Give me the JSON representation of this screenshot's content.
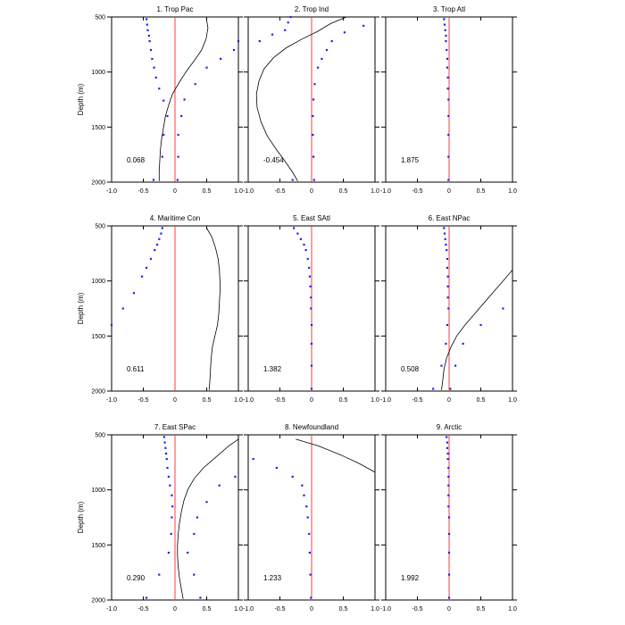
{
  "chart_data": {
    "type": "scatter",
    "ylabel": "Depth (m)",
    "x_ticks": [
      "-1.0",
      "-0.5",
      "0",
      "0.5",
      "1.0"
    ],
    "y_ticks": [
      "500",
      "1000",
      "1500",
      "2000"
    ],
    "xlim": [
      -1,
      1
    ],
    "ylim": [
      2000,
      500
    ],
    "y_axis_inverted": true,
    "reference_line": {
      "x": 0,
      "color": "#ff3b3b"
    },
    "colors": {
      "points": "#2222ee",
      "curve": "#000000",
      "axes": "#000000"
    },
    "panels": [
      {
        "title": "1. Trop Pac",
        "stat": "0.068",
        "points": [
          [
            -0.45,
            520
          ],
          [
            -0.44,
            570
          ],
          [
            -0.43,
            620
          ],
          [
            -0.41,
            670
          ],
          [
            -0.4,
            720
          ],
          [
            -0.38,
            800
          ],
          [
            -0.36,
            880
          ],
          [
            -0.33,
            960
          ],
          [
            -0.3,
            1050
          ],
          [
            -0.25,
            1150
          ],
          [
            -0.18,
            1260
          ],
          [
            -0.12,
            1400
          ],
          [
            -0.18,
            1570
          ],
          [
            -0.2,
            1770
          ],
          [
            -0.34,
            1980
          ],
          [
            1.0,
            720
          ],
          [
            0.93,
            800
          ],
          [
            0.72,
            880
          ],
          [
            0.5,
            960
          ],
          [
            0.32,
            1110
          ],
          [
            0.15,
            1250
          ],
          [
            0.1,
            1400
          ],
          [
            0.05,
            1570
          ],
          [
            0.05,
            1770
          ],
          [
            0.04,
            1980
          ]
        ],
        "curve": [
          [
            0.5,
            530
          ],
          [
            0.52,
            600
          ],
          [
            0.49,
            700
          ],
          [
            0.42,
            800
          ],
          [
            0.3,
            900
          ],
          [
            0.17,
            1000
          ],
          [
            0.06,
            1100
          ],
          [
            -0.04,
            1200
          ],
          [
            -0.1,
            1300
          ],
          [
            -0.15,
            1400
          ],
          [
            -0.18,
            1500
          ],
          [
            -0.21,
            1600
          ],
          [
            -0.23,
            1700
          ],
          [
            -0.24,
            1800
          ],
          [
            -0.25,
            1900
          ],
          [
            -0.25,
            1990
          ]
        ]
      },
      {
        "title": "2. Trop Ind",
        "stat": "-0.454",
        "points": [
          [
            -0.42,
            620
          ],
          [
            -0.37,
            550
          ],
          [
            -0.33,
            500
          ],
          [
            -0.62,
            660
          ],
          [
            -0.82,
            720
          ],
          [
            0.82,
            580
          ],
          [
            0.52,
            640
          ],
          [
            0.32,
            720
          ],
          [
            0.24,
            800
          ],
          [
            0.16,
            880
          ],
          [
            0.1,
            960
          ],
          [
            0.05,
            1110
          ],
          [
            0.03,
            1250
          ],
          [
            0.02,
            1400
          ],
          [
            0.02,
            1570
          ],
          [
            0.03,
            1770
          ],
          [
            0.04,
            1980
          ],
          [
            -0.3,
            1980
          ]
        ],
        "curve": [
          [
            0.55,
            500
          ],
          [
            0.3,
            560
          ],
          [
            0.1,
            630
          ],
          [
            -0.15,
            700
          ],
          [
            -0.4,
            780
          ],
          [
            -0.6,
            870
          ],
          [
            -0.75,
            970
          ],
          [
            -0.83,
            1080
          ],
          [
            -0.87,
            1200
          ],
          [
            -0.86,
            1320
          ],
          [
            -0.8,
            1450
          ],
          [
            -0.7,
            1580
          ],
          [
            -0.56,
            1700
          ],
          [
            -0.42,
            1810
          ],
          [
            -0.3,
            1910
          ],
          [
            -0.22,
            1990
          ]
        ]
      },
      {
        "title": "3. Trop Atl",
        "stat": "1.875",
        "points": [
          [
            -0.08,
            520
          ],
          [
            -0.07,
            570
          ],
          [
            -0.06,
            620
          ],
          [
            -0.05,
            670
          ],
          [
            -0.05,
            720
          ],
          [
            -0.04,
            800
          ],
          [
            -0.03,
            880
          ],
          [
            -0.03,
            960
          ],
          [
            -0.02,
            1050
          ],
          [
            -0.02,
            1150
          ],
          [
            -0.01,
            1250
          ],
          [
            -0.01,
            1400
          ],
          [
            -0.01,
            1570
          ],
          [
            -0.01,
            1770
          ],
          [
            -0.01,
            1980
          ]
        ],
        "curve": []
      },
      {
        "title": "4. Maritime Con",
        "stat": "0.611",
        "points": [
          [
            -0.2,
            520
          ],
          [
            -0.22,
            570
          ],
          [
            -0.25,
            620
          ],
          [
            -0.28,
            670
          ],
          [
            -0.32,
            720
          ],
          [
            -0.38,
            800
          ],
          [
            -0.45,
            880
          ],
          [
            -0.52,
            960
          ],
          [
            -0.65,
            1110
          ],
          [
            -0.82,
            1250
          ],
          [
            -1.0,
            1400
          ]
        ],
        "curve": [
          [
            0.5,
            520
          ],
          [
            0.58,
            600
          ],
          [
            0.64,
            700
          ],
          [
            0.68,
            800
          ],
          [
            0.7,
            900
          ],
          [
            0.71,
            1000
          ],
          [
            0.71,
            1100
          ],
          [
            0.7,
            1200
          ],
          [
            0.69,
            1300
          ],
          [
            0.67,
            1400
          ],
          [
            0.63,
            1500
          ],
          [
            0.59,
            1600
          ],
          [
            0.57,
            1700
          ],
          [
            0.56,
            1800
          ],
          [
            0.55,
            1900
          ],
          [
            0.54,
            1990
          ]
        ]
      },
      {
        "title": "5. East SAtl",
        "stat": "1.382",
        "points": [
          [
            -0.28,
            520
          ],
          [
            -0.22,
            570
          ],
          [
            -0.17,
            620
          ],
          [
            -0.12,
            670
          ],
          [
            -0.09,
            720
          ],
          [
            -0.06,
            800
          ],
          [
            -0.04,
            880
          ],
          [
            -0.03,
            960
          ],
          [
            -0.02,
            1050
          ],
          [
            -0.01,
            1150
          ],
          [
            -0.01,
            1250
          ],
          [
            0.0,
            1400
          ],
          [
            0.0,
            1570
          ],
          [
            0.0,
            1770
          ],
          [
            0.0,
            1980
          ]
        ],
        "curve": []
      },
      {
        "title": "6. East NPac",
        "stat": "0.508",
        "points": [
          [
            -0.08,
            520
          ],
          [
            -0.07,
            570
          ],
          [
            -0.06,
            620
          ],
          [
            -0.05,
            670
          ],
          [
            -0.04,
            720
          ],
          [
            -0.03,
            800
          ],
          [
            -0.03,
            880
          ],
          [
            -0.02,
            960
          ],
          [
            -0.02,
            1050
          ],
          [
            -0.02,
            1150
          ],
          [
            -0.01,
            1250
          ],
          [
            -0.03,
            1400
          ],
          [
            -0.05,
            1570
          ],
          [
            -0.12,
            1770
          ],
          [
            -0.25,
            1980
          ],
          [
            0.85,
            1250
          ],
          [
            0.5,
            1400
          ],
          [
            0.22,
            1570
          ],
          [
            0.1,
            1770
          ],
          [
            0.02,
            1980
          ]
        ],
        "curve": [
          [
            1.0,
            900
          ],
          [
            0.85,
            1000
          ],
          [
            0.7,
            1100
          ],
          [
            0.55,
            1200
          ],
          [
            0.4,
            1300
          ],
          [
            0.25,
            1400
          ],
          [
            0.12,
            1500
          ],
          [
            0.03,
            1600
          ],
          [
            -0.04,
            1700
          ],
          [
            -0.08,
            1800
          ],
          [
            -0.1,
            1900
          ],
          [
            -0.12,
            1990
          ]
        ]
      },
      {
        "title": "7. East SPac",
        "stat": "0.290",
        "points": [
          [
            -0.17,
            520
          ],
          [
            -0.16,
            570
          ],
          [
            -0.15,
            620
          ],
          [
            -0.14,
            670
          ],
          [
            -0.13,
            720
          ],
          [
            -0.12,
            800
          ],
          [
            -0.1,
            880
          ],
          [
            -0.08,
            960
          ],
          [
            -0.05,
            1050
          ],
          [
            -0.04,
            1150
          ],
          [
            -0.05,
            1250
          ],
          [
            -0.06,
            1400
          ],
          [
            -0.1,
            1570
          ],
          [
            -0.25,
            1770
          ],
          [
            -0.45,
            1980
          ],
          [
            0.95,
            880
          ],
          [
            0.7,
            960
          ],
          [
            0.5,
            1110
          ],
          [
            0.35,
            1250
          ],
          [
            0.3,
            1400
          ],
          [
            0.2,
            1570
          ],
          [
            0.3,
            1770
          ],
          [
            0.4,
            1980
          ]
        ],
        "curve": [
          [
            1.0,
            540
          ],
          [
            0.85,
            600
          ],
          [
            0.65,
            700
          ],
          [
            0.45,
            800
          ],
          [
            0.3,
            900
          ],
          [
            0.2,
            1000
          ],
          [
            0.14,
            1100
          ],
          [
            0.1,
            1200
          ],
          [
            0.07,
            1300
          ],
          [
            0.05,
            1400
          ],
          [
            0.04,
            1500
          ],
          [
            0.04,
            1600
          ],
          [
            0.05,
            1700
          ],
          [
            0.07,
            1800
          ],
          [
            0.1,
            1900
          ],
          [
            0.13,
            1990
          ]
        ]
      },
      {
        "title": "8. Newfoundland",
        "stat": "1.233",
        "points": [
          [
            -0.92,
            720
          ],
          [
            -0.55,
            800
          ],
          [
            -0.3,
            880
          ],
          [
            -0.15,
            960
          ],
          [
            -0.12,
            1050
          ],
          [
            -0.08,
            1150
          ],
          [
            -0.06,
            1250
          ],
          [
            -0.04,
            1400
          ],
          [
            -0.03,
            1570
          ],
          [
            -0.02,
            1770
          ],
          [
            -0.01,
            1980
          ]
        ],
        "curve": [
          [
            -0.25,
            540
          ],
          [
            0.1,
            600
          ],
          [
            0.45,
            680
          ],
          [
            0.75,
            760
          ],
          [
            1.0,
            840
          ]
        ]
      },
      {
        "title": "9. Arctic",
        "stat": "1.992",
        "points": [
          [
            -0.04,
            520
          ],
          [
            -0.03,
            570
          ],
          [
            -0.03,
            620
          ],
          [
            -0.02,
            670
          ],
          [
            -0.02,
            720
          ],
          [
            -0.01,
            800
          ],
          [
            -0.01,
            880
          ],
          [
            -0.01,
            960
          ],
          [
            -0.01,
            1050
          ],
          [
            -0.01,
            1150
          ],
          [
            0.0,
            1250
          ],
          [
            0.0,
            1400
          ],
          [
            0.0,
            1570
          ],
          [
            0.0,
            1770
          ],
          [
            0.0,
            1980
          ]
        ],
        "curve": []
      }
    ]
  }
}
